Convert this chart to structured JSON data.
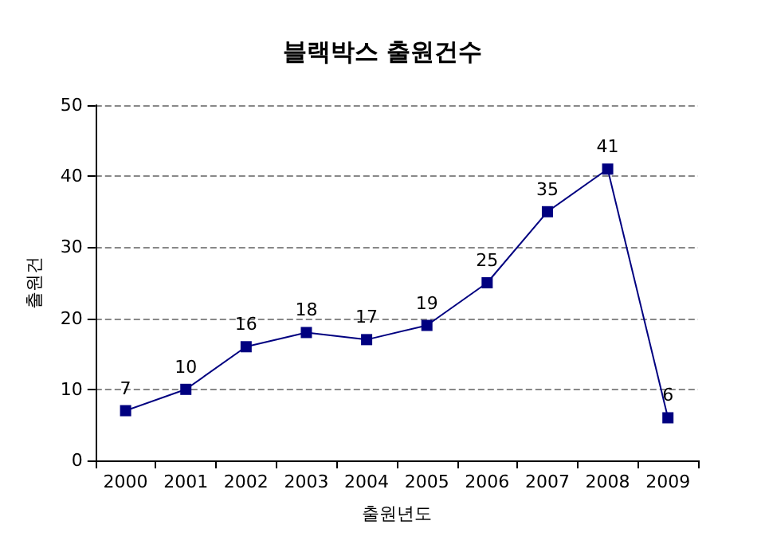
{
  "chart_data": {
    "type": "line",
    "title": "블랙박스 출원건수",
    "xlabel": "출원년도",
    "ylabel": "출원건",
    "categories": [
      "2000",
      "2001",
      "2002",
      "2003",
      "2004",
      "2005",
      "2006",
      "2007",
      "2008",
      "2009"
    ],
    "series": [
      {
        "color": "#000080",
        "values": [
          7,
          10,
          16,
          18,
          17,
          19,
          25,
          35,
          41,
          6
        ]
      }
    ],
    "ylim": [
      0,
      50
    ],
    "yticks": [
      0,
      10,
      20,
      30,
      40,
      50
    ],
    "grid": "y",
    "marker": "square",
    "line_style": "solid",
    "data_labels": true
  }
}
